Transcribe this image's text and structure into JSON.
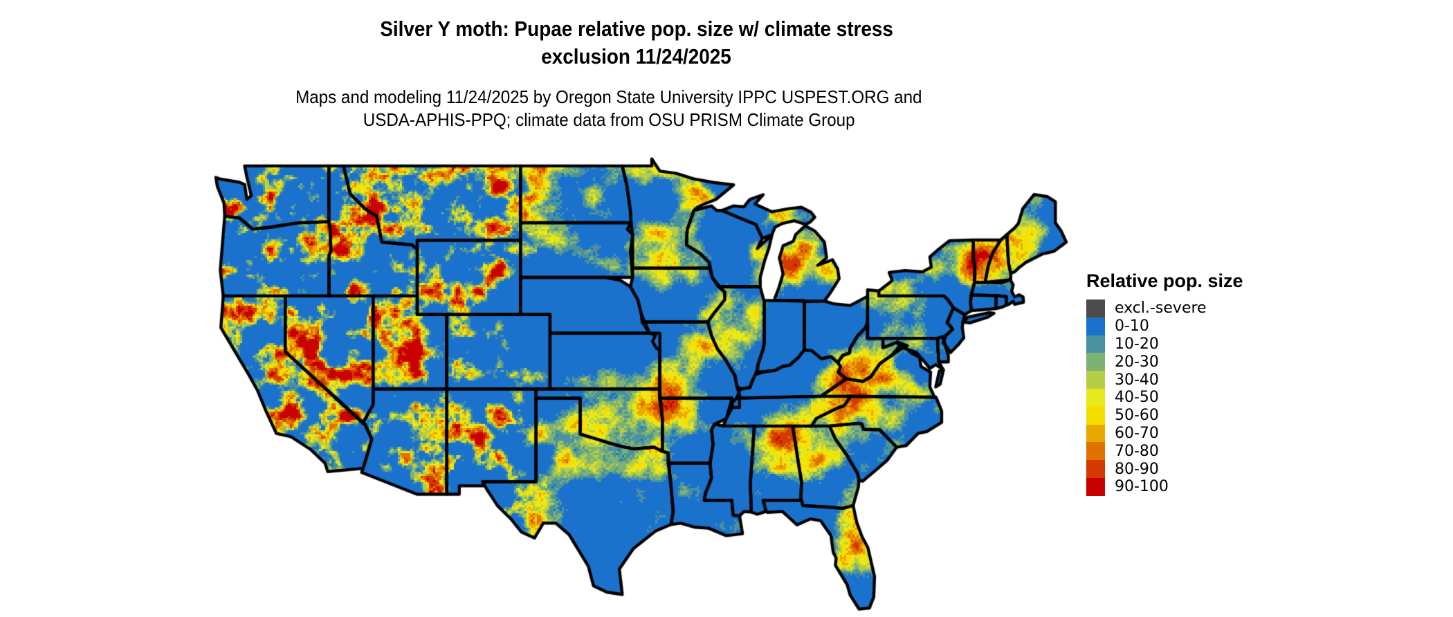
{
  "header": {
    "title_line1": "Silver Y moth: Pupae relative pop. size w/ climate stress",
    "title_line2": "exclusion 11/24/2025",
    "subtitle_line1": "Maps and modeling 11/24/2025 by Oregon State University IPPC USPEST.ORG and",
    "subtitle_line2": "USDA-APHIS-PPQ; climate data from OSU PRISM Climate Group"
  },
  "legend": {
    "title": "Relative pop. size",
    "items": [
      {
        "label": "excl.-severe",
        "color": "#4B4B4B"
      },
      {
        "label": "0-10",
        "color": "#1B72CC"
      },
      {
        "label": "10-20",
        "color": "#4A92A0"
      },
      {
        "label": "20-30",
        "color": "#7DB272"
      },
      {
        "label": "30-40",
        "color": "#B5CE48"
      },
      {
        "label": "40-50",
        "color": "#E8E81A"
      },
      {
        "label": "50-60",
        "color": "#F7DE00"
      },
      {
        "label": "60-70",
        "color": "#EBA800"
      },
      {
        "label": "70-80",
        "color": "#E07200"
      },
      {
        "label": "80-90",
        "color": "#D43900"
      },
      {
        "label": "90-100",
        "color": "#C80000"
      }
    ]
  },
  "map": {
    "background": "#FFFFFF",
    "water_color": "#FFFFFF",
    "state_border_color": "#000000",
    "region": "Conterminous United States"
  }
}
